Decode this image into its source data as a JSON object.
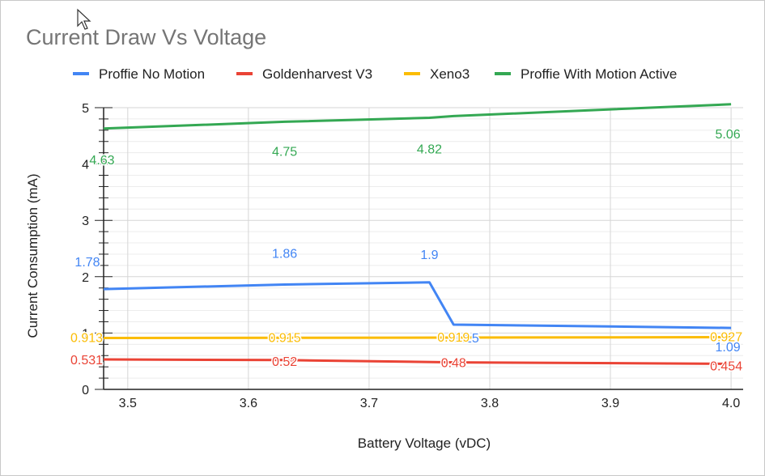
{
  "chart_data": {
    "type": "line",
    "title": "Current Draw Vs Voltage",
    "xlabel": "Battery Voltage (vDC)",
    "ylabel": "Current Consumption (mA)",
    "xlim": [
      3.48,
      4.01
    ],
    "ylim": [
      0,
      5
    ],
    "x_ticks": [
      "3.5",
      "3.6",
      "3.7",
      "3.8",
      "3.9",
      "4.0"
    ],
    "y_ticks": [
      "0",
      "1",
      "2",
      "3",
      "4",
      "5"
    ],
    "grid": true,
    "legend_position": "top",
    "series": [
      {
        "name": "Proffie No Motion",
        "color": "#4285f4",
        "x": [
          3.48,
          3.63,
          3.75,
          3.77,
          4.0
        ],
        "values": [
          1.78,
          1.86,
          1.9,
          1.15,
          1.09
        ],
        "labels": [
          "1.78",
          "1.86",
          "1.9",
          "1.15",
          "1.09"
        ]
      },
      {
        "name": "Goldenharvest V3",
        "color": "#ea4335",
        "x": [
          3.48,
          3.63,
          3.77,
          4.0
        ],
        "values": [
          0.531,
          0.52,
          0.48,
          0.454
        ],
        "labels": [
          "0.531",
          "0.52",
          "0.48",
          "0.454"
        ]
      },
      {
        "name": "Xeno3",
        "color": "#fbbc04",
        "x": [
          3.48,
          3.63,
          3.77,
          4.0
        ],
        "values": [
          0.913,
          0.915,
          0.919,
          0.927
        ],
        "labels": [
          "0.913",
          "0.915",
          "0.919",
          "0.927"
        ]
      },
      {
        "name": "Proffie With Motion Active",
        "color": "#34a853",
        "x": [
          3.48,
          3.63,
          3.75,
          3.77,
          4.0
        ],
        "values": [
          4.63,
          4.75,
          4.82,
          4.85,
          5.06
        ],
        "labels": [
          "4.63",
          "4.75",
          "4.82",
          "",
          "5.06"
        ]
      }
    ]
  }
}
